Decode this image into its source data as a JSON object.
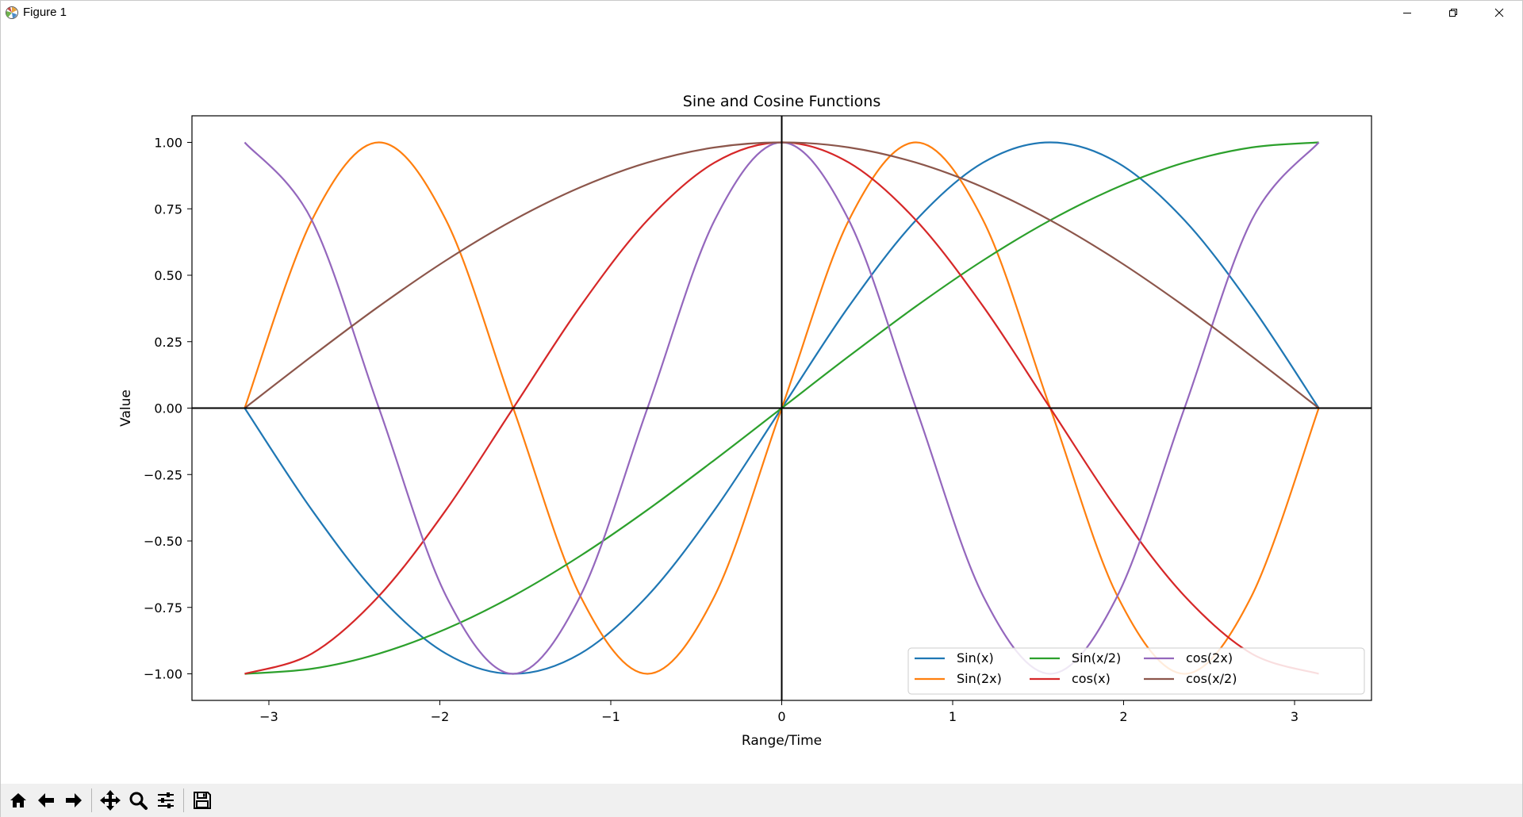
{
  "window": {
    "title": "Figure 1",
    "controls": [
      "minimize-icon",
      "restore-icon",
      "close-icon"
    ]
  },
  "toolbar": {
    "buttons": [
      "home-icon",
      "back-icon",
      "forward-icon",
      "pan-icon",
      "zoom-icon",
      "configure-subplots-icon",
      "save-icon"
    ]
  },
  "chart_data": {
    "type": "line",
    "title": "Sine and Cosine Functions",
    "xlabel": "Range/Time",
    "ylabel": "Value",
    "xlim": [
      -3.45,
      3.45
    ],
    "ylim": [
      -1.1,
      1.1
    ],
    "x_ticks": [
      -3,
      -2,
      -1,
      0,
      1,
      2,
      3
    ],
    "x_tick_labels": [
      "−3",
      "−2",
      "−1",
      "0",
      "1",
      "2",
      "3"
    ],
    "y_ticks": [
      1.0,
      0.75,
      0.5,
      0.25,
      0.0,
      -0.25,
      -0.5,
      -0.75,
      -1.0
    ],
    "y_tick_labels": [
      "1.00",
      "0.75",
      "0.50",
      "0.25",
      "0.00",
      "−0.25",
      "−0.50",
      "−0.75",
      "−1.00"
    ],
    "x": [
      -3.1416,
      -2.7489,
      -2.3562,
      -1.9635,
      -1.5708,
      -1.1781,
      -0.7854,
      -0.3927,
      0.0,
      0.3927,
      0.7854,
      1.1781,
      1.5708,
      1.9635,
      2.3562,
      2.7489,
      3.1416
    ],
    "series": [
      {
        "name": "Sin(x)",
        "color": "#1f77b4",
        "values": [
          0.0,
          -0.383,
          -0.707,
          -0.924,
          -1.0,
          -0.924,
          -0.707,
          -0.383,
          0.0,
          0.383,
          0.707,
          0.924,
          1.0,
          0.924,
          0.707,
          0.383,
          0.0
        ]
      },
      {
        "name": "Sin(2x)",
        "color": "#ff7f0e",
        "values": [
          0.0,
          0.707,
          1.0,
          0.707,
          0.0,
          -0.707,
          -1.0,
          -0.707,
          0.0,
          0.707,
          1.0,
          0.707,
          0.0,
          -0.707,
          -1.0,
          -0.707,
          0.0
        ]
      },
      {
        "name": "Sin(x/2)",
        "color": "#2ca02c",
        "values": [
          -1.0,
          -0.981,
          -0.924,
          -0.831,
          -0.707,
          -0.556,
          -0.383,
          -0.195,
          0.0,
          0.195,
          0.383,
          0.556,
          0.707,
          0.831,
          0.924,
          0.981,
          1.0
        ]
      },
      {
        "name": "cos(x)",
        "color": "#d62728",
        "values": [
          -1.0,
          -0.924,
          -0.707,
          -0.383,
          0.0,
          0.383,
          0.707,
          0.924,
          1.0,
          0.924,
          0.707,
          0.383,
          0.0,
          -0.383,
          -0.707,
          -0.924,
          -1.0
        ]
      },
      {
        "name": "cos(2x)",
        "color": "#9467bd",
        "values": [
          1.0,
          0.707,
          0.0,
          -0.707,
          -1.0,
          -0.707,
          0.0,
          0.707,
          1.0,
          0.707,
          0.0,
          -0.707,
          -1.0,
          -0.707,
          0.0,
          0.707,
          1.0
        ]
      },
      {
        "name": "cos(x/2)",
        "color": "#8c564b",
        "values": [
          0.0,
          0.195,
          0.383,
          0.556,
          0.707,
          0.831,
          0.924,
          0.981,
          1.0,
          0.981,
          0.924,
          0.831,
          0.707,
          0.556,
          0.383,
          0.195,
          0.0
        ]
      }
    ],
    "legend": {
      "placement": "lower-right",
      "columns": 4,
      "order": [
        "Sin(x)",
        "Sin(2x)",
        "Sin(x/2)",
        "cos(x)",
        "cos(2x)",
        "cos(x/2)"
      ]
    },
    "reference_lines": {
      "x": 0,
      "y": 0,
      "color": "#000000"
    },
    "grid": false
  }
}
